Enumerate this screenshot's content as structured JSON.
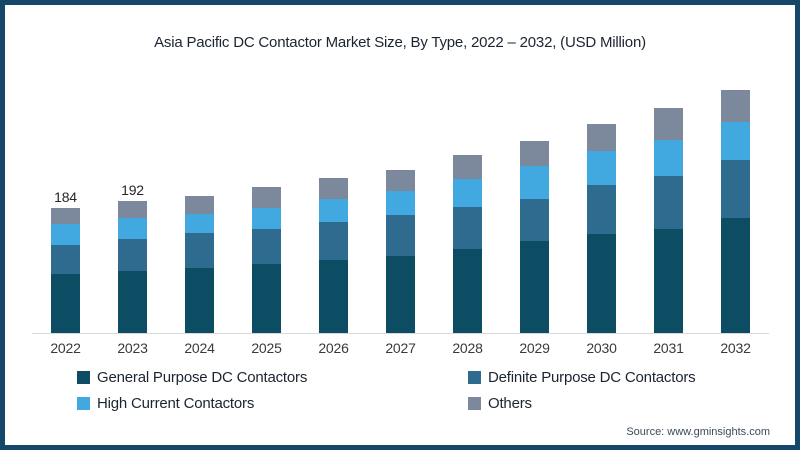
{
  "page": {
    "title": "Asia Pacific DC Contactor Market Size, By Type, 2022 – 2032, (USD Million)",
    "source": "Source: www.gminsights.com",
    "border_color": "#15476b"
  },
  "chart_data": {
    "type": "bar",
    "stacked": true,
    "title": "Asia Pacific DC Contactor Market Size, By Type, 2022 – 2032, (USD Million)",
    "unit": "USD Million",
    "categories": [
      "2022",
      "2023",
      "2024",
      "2025",
      "2026",
      "2027",
      "2028",
      "2029",
      "2030",
      "2031",
      "2032"
    ],
    "series": [
      {
        "name": "General Purpose DC Contactors",
        "color": "#0d4d63",
        "values": [
          86,
          90,
          95,
          100,
          106,
          113,
          123,
          134,
          144,
          152,
          168
        ]
      },
      {
        "name": "Definite Purpose DC Contactors",
        "color": "#2e6b8e",
        "values": [
          43,
          47,
          51,
          51,
          55,
          60,
          61,
          62,
          71,
          77,
          85
        ]
      },
      {
        "name": "High Current Contactors",
        "color": "#41a8e0",
        "values": [
          31,
          30,
          28,
          31,
          33,
          35,
          41,
          48,
          49,
          53,
          56
        ]
      },
      {
        "name": "Others",
        "color": "#7c899c",
        "values": [
          24,
          25,
          27,
          31,
          31,
          31,
          35,
          37,
          40,
          47,
          47
        ]
      }
    ],
    "totals": [
      184,
      192,
      201,
      213,
      225,
      239,
      260,
      281,
      304,
      329,
      356
    ],
    "value_labels": [
      "184",
      "192",
      "",
      "",
      "",
      "",
      "",
      "",
      "",
      "",
      ""
    ],
    "ylim": [
      0,
      360
    ],
    "grid": false,
    "legend_position": "bottom"
  }
}
